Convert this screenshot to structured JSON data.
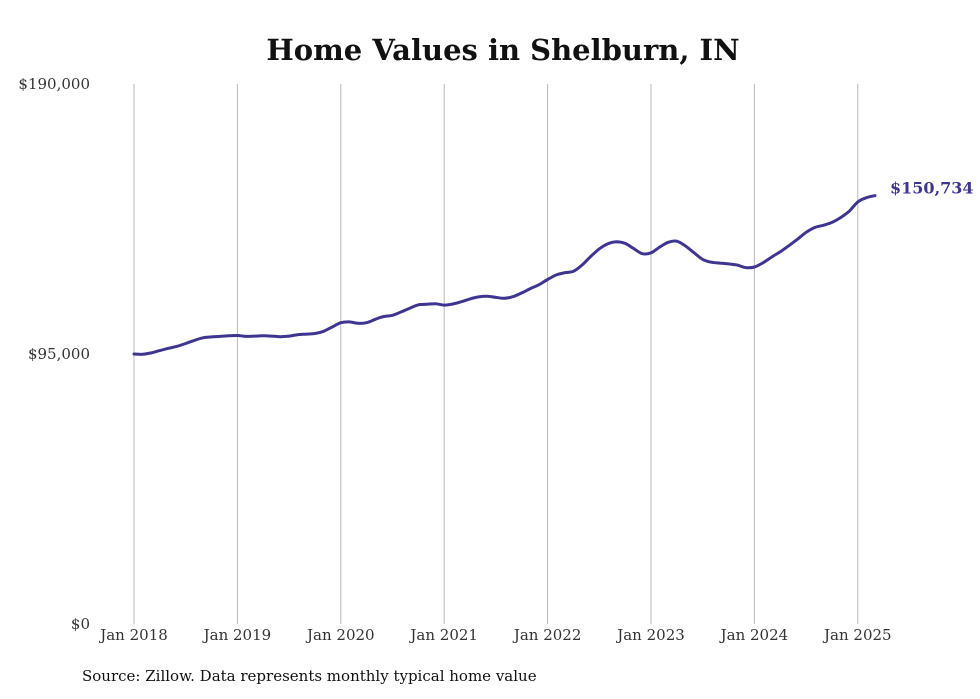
{
  "chart_data": {
    "type": "line",
    "title": "Home Values in Shelburn, IN",
    "xlabel": "",
    "ylabel": "",
    "ylim": [
      0,
      190000
    ],
    "yticks": [
      0,
      95000,
      190000
    ],
    "ytick_labels": [
      "$0",
      "$95,000",
      "$190,000"
    ],
    "xticks": [
      "Jan 2018",
      "Jan 2019",
      "Jan 2020",
      "Jan 2021",
      "Jan 2022",
      "Jan 2023",
      "Jan 2024",
      "Jan 2025"
    ],
    "grid": "vertical",
    "line_color": "#3d3590",
    "end_label": "$150,734",
    "series": [
      {
        "name": "",
        "x": [
          "2018-01",
          "2018-02",
          "2018-03",
          "2018-04",
          "2018-05",
          "2018-06",
          "2018-07",
          "2018-08",
          "2018-09",
          "2018-10",
          "2018-11",
          "2018-12",
          "2019-01",
          "2019-02",
          "2019-03",
          "2019-04",
          "2019-05",
          "2019-06",
          "2019-07",
          "2019-08",
          "2019-09",
          "2019-10",
          "2019-11",
          "2019-12",
          "2020-01",
          "2020-02",
          "2020-03",
          "2020-04",
          "2020-05",
          "2020-06",
          "2020-07",
          "2020-08",
          "2020-09",
          "2020-10",
          "2020-11",
          "2020-12",
          "2021-01",
          "2021-02",
          "2021-03",
          "2021-04",
          "2021-05",
          "2021-06",
          "2021-07",
          "2021-08",
          "2021-09",
          "2021-10",
          "2021-11",
          "2021-12",
          "2022-01",
          "2022-02",
          "2022-03",
          "2022-04",
          "2022-05",
          "2022-06",
          "2022-07",
          "2022-08",
          "2022-09",
          "2022-10",
          "2022-11",
          "2022-12",
          "2023-01",
          "2023-02",
          "2023-03",
          "2023-04",
          "2023-05",
          "2023-06",
          "2023-07",
          "2023-08",
          "2023-09",
          "2023-10",
          "2023-11",
          "2023-12",
          "2024-01",
          "2024-02",
          "2024-03",
          "2024-04",
          "2024-05",
          "2024-06",
          "2024-07",
          "2024-08",
          "2024-09",
          "2024-10",
          "2024-11",
          "2024-12",
          "2025-01",
          "2025-02",
          "2025-03"
        ],
        "values": [
          95000,
          94900,
          95400,
          96200,
          97000,
          97700,
          98700,
          99800,
          100700,
          101000,
          101200,
          101400,
          101500,
          101200,
          101300,
          101400,
          101300,
          101100,
          101300,
          101800,
          102000,
          102200,
          103000,
          104500,
          106000,
          106300,
          105800,
          106000,
          107200,
          108200,
          108600,
          109800,
          111100,
          112300,
          112500,
          112700,
          112200,
          112600,
          113400,
          114400,
          115100,
          115300,
          114900,
          114600,
          115200,
          116500,
          118000,
          119400,
          121200,
          122800,
          123600,
          124100,
          126300,
          129300,
          132000,
          133800,
          134500,
          133900,
          132100,
          130300,
          130600,
          132600,
          134300,
          134700,
          133000,
          130600,
          128300,
          127300,
          127000,
          126700,
          126300,
          125400,
          125600,
          127100,
          129100,
          131000,
          133100,
          135400,
          137800,
          139500,
          140300,
          141300,
          143000,
          145200,
          148500,
          150000,
          150734
        ]
      }
    ]
  }
}
